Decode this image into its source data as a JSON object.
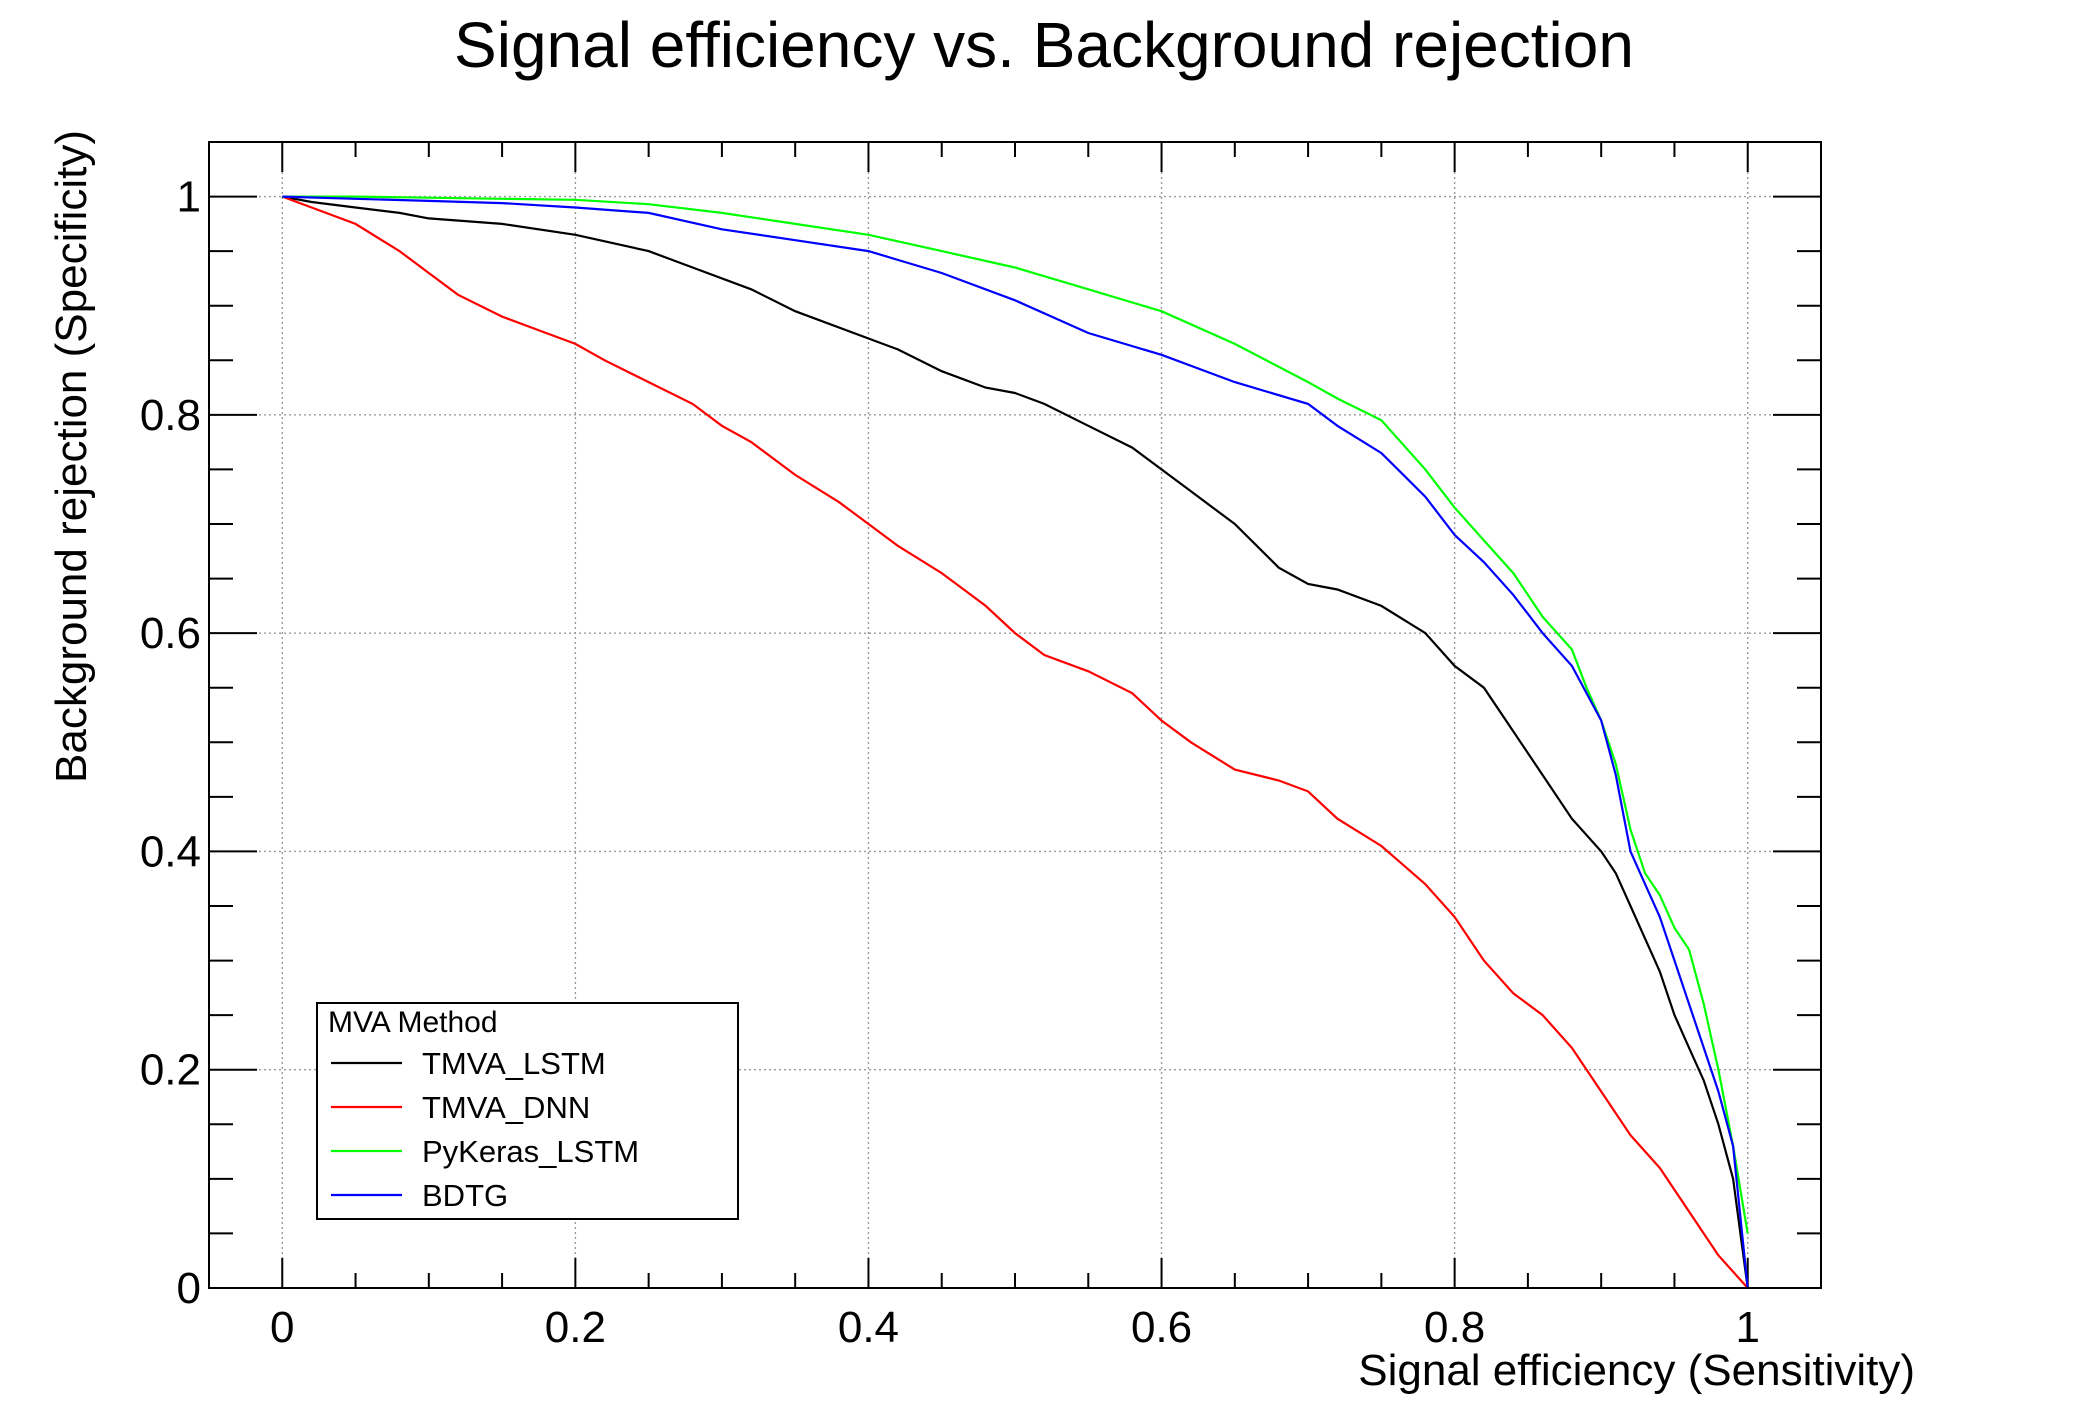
{
  "chart_data": {
    "type": "line",
    "title": "Signal efficiency vs. Background rejection",
    "xlabel": "Signal efficiency (Sensitivity)",
    "ylabel": "Background rejection (Specificity)",
    "xlim": [
      -0.05,
      1.05
    ],
    "ylim": [
      0,
      1.05
    ],
    "x_ticks": [
      {
        "value": 0,
        "label": "0"
      },
      {
        "value": 0.2,
        "label": "0.2"
      },
      {
        "value": 0.4,
        "label": "0.4"
      },
      {
        "value": 0.6,
        "label": "0.6"
      },
      {
        "value": 0.8,
        "label": "0.8"
      },
      {
        "value": 1,
        "label": "1"
      }
    ],
    "y_ticks": [
      {
        "value": 0,
        "label": "0"
      },
      {
        "value": 0.2,
        "label": "0.2"
      },
      {
        "value": 0.4,
        "label": "0.4"
      },
      {
        "value": 0.6,
        "label": "0.6"
      },
      {
        "value": 0.8,
        "label": "0.8"
      },
      {
        "value": 1,
        "label": "1"
      }
    ],
    "grid": true,
    "legend": {
      "title": "MVA Method",
      "placement": "bottom-left"
    },
    "series": [
      {
        "name": "TMVA_LSTM",
        "color": "#000000",
        "x": [
          0,
          0.02,
          0.05,
          0.08,
          0.1,
          0.15,
          0.2,
          0.25,
          0.28,
          0.32,
          0.35,
          0.4,
          0.42,
          0.45,
          0.48,
          0.5,
          0.52,
          0.55,
          0.58,
          0.6,
          0.62,
          0.65,
          0.68,
          0.7,
          0.72,
          0.75,
          0.78,
          0.8,
          0.82,
          0.84,
          0.86,
          0.88,
          0.9,
          0.91,
          0.92,
          0.93,
          0.94,
          0.95,
          0.96,
          0.97,
          0.98,
          0.99,
          1.0
        ],
        "y": [
          1.0,
          0.995,
          0.99,
          0.985,
          0.98,
          0.975,
          0.965,
          0.95,
          0.935,
          0.915,
          0.895,
          0.87,
          0.86,
          0.84,
          0.825,
          0.82,
          0.81,
          0.79,
          0.77,
          0.75,
          0.73,
          0.7,
          0.66,
          0.645,
          0.64,
          0.625,
          0.6,
          0.57,
          0.55,
          0.51,
          0.47,
          0.43,
          0.4,
          0.38,
          0.35,
          0.32,
          0.29,
          0.25,
          0.22,
          0.19,
          0.15,
          0.1,
          0.0
        ]
      },
      {
        "name": "TMVA_DNN",
        "color": "#ff0000",
        "x": [
          0,
          0.02,
          0.05,
          0.08,
          0.1,
          0.12,
          0.15,
          0.18,
          0.2,
          0.22,
          0.25,
          0.28,
          0.3,
          0.32,
          0.35,
          0.38,
          0.4,
          0.42,
          0.45,
          0.48,
          0.5,
          0.52,
          0.55,
          0.58,
          0.6,
          0.62,
          0.65,
          0.68,
          0.7,
          0.72,
          0.75,
          0.78,
          0.8,
          0.82,
          0.84,
          0.86,
          0.88,
          0.9,
          0.92,
          0.94,
          0.96,
          0.98,
          1.0
        ],
        "y": [
          1.0,
          0.99,
          0.975,
          0.95,
          0.93,
          0.91,
          0.89,
          0.875,
          0.865,
          0.85,
          0.83,
          0.81,
          0.79,
          0.775,
          0.745,
          0.72,
          0.7,
          0.68,
          0.655,
          0.625,
          0.6,
          0.58,
          0.565,
          0.545,
          0.52,
          0.5,
          0.475,
          0.465,
          0.455,
          0.43,
          0.405,
          0.37,
          0.34,
          0.3,
          0.27,
          0.25,
          0.22,
          0.18,
          0.14,
          0.11,
          0.07,
          0.03,
          0.0
        ]
      },
      {
        "name": "PyKeras_LSTM",
        "color": "#00ff00",
        "x": [
          0,
          0.05,
          0.1,
          0.15,
          0.2,
          0.25,
          0.3,
          0.35,
          0.4,
          0.45,
          0.5,
          0.55,
          0.6,
          0.65,
          0.7,
          0.72,
          0.75,
          0.78,
          0.8,
          0.82,
          0.84,
          0.86,
          0.88,
          0.89,
          0.9,
          0.91,
          0.92,
          0.93,
          0.94,
          0.95,
          0.96,
          0.97,
          0.98,
          0.99,
          1.0
        ],
        "y": [
          1.0,
          1.0,
          0.999,
          0.998,
          0.997,
          0.993,
          0.985,
          0.975,
          0.965,
          0.95,
          0.935,
          0.915,
          0.895,
          0.865,
          0.83,
          0.815,
          0.795,
          0.75,
          0.715,
          0.685,
          0.655,
          0.615,
          0.585,
          0.55,
          0.52,
          0.48,
          0.42,
          0.38,
          0.36,
          0.33,
          0.31,
          0.26,
          0.2,
          0.13,
          0.05
        ]
      },
      {
        "name": "BDTG",
        "color": "#0000ff",
        "x": [
          0,
          0.05,
          0.1,
          0.15,
          0.2,
          0.25,
          0.3,
          0.35,
          0.4,
          0.45,
          0.5,
          0.55,
          0.6,
          0.65,
          0.7,
          0.72,
          0.75,
          0.78,
          0.8,
          0.82,
          0.84,
          0.86,
          0.88,
          0.9,
          0.91,
          0.92,
          0.93,
          0.94,
          0.95,
          0.96,
          0.97,
          0.98,
          0.99,
          1.0
        ],
        "y": [
          1.0,
          0.998,
          0.996,
          0.994,
          0.99,
          0.985,
          0.97,
          0.96,
          0.95,
          0.93,
          0.905,
          0.875,
          0.855,
          0.83,
          0.81,
          0.79,
          0.765,
          0.725,
          0.69,
          0.665,
          0.635,
          0.6,
          0.57,
          0.52,
          0.47,
          0.4,
          0.37,
          0.34,
          0.3,
          0.26,
          0.22,
          0.18,
          0.13,
          0.0
        ]
      }
    ]
  }
}
